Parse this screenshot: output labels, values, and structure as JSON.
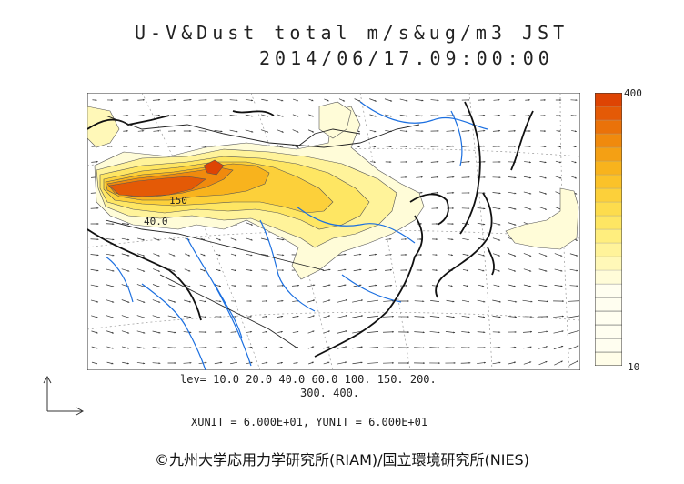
{
  "title": {
    "line1": "U-V&Dust total m/s&ug/m3 JST",
    "line2": "2014/06/17.09:00:00"
  },
  "levels": {
    "line1": "lev= 10.0 20.0 40.0 60.0 100. 150. 200.",
    "line2": "300. 400."
  },
  "units_text": "XUNIT = 6.000E+01, YUNIT = 6.000E+01",
  "credit": "©九州大学応用力学研究所(RIAM)/国立環境研究所(NIES)",
  "colorbar": {
    "max_label": "400",
    "min_label": "10",
    "colors": [
      "#fffcd8",
      "#fff8b8",
      "#fff39a",
      "#ffee7e",
      "#fee663",
      "#fddc4d",
      "#fcd03a",
      "#fbc229",
      "#f8b31d",
      "#f4a014",
      "#f08a0d",
      "#ea7209",
      "#e45a06",
      "#de4403"
    ]
  },
  "map": {
    "contour_labels": [
      "150",
      "40.0"
    ],
    "contour_label_values": [
      150,
      40
    ]
  }
}
